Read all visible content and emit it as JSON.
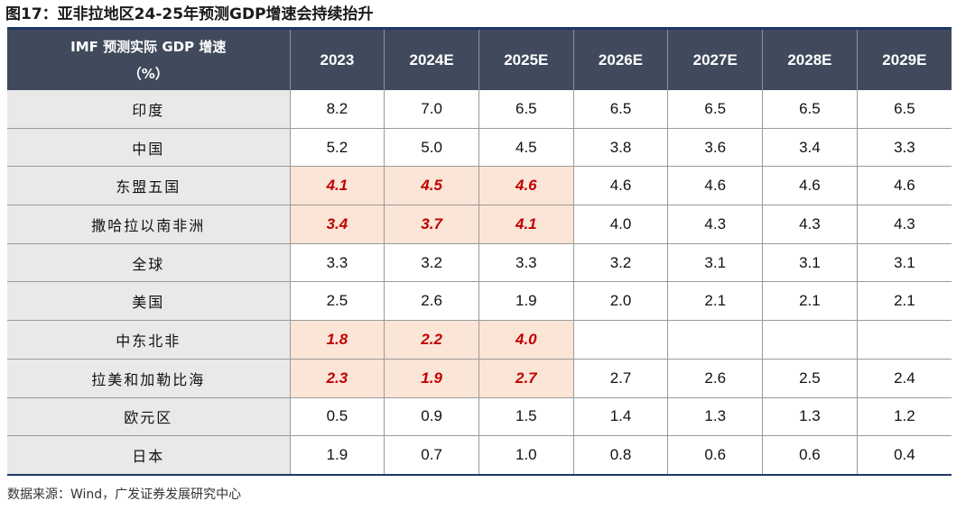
{
  "figure": {
    "title": "图17：亚非拉地区24-25年预测GDP增速会持续抬升",
    "source": "数据来源：Wind，广发证券发展研究中心"
  },
  "table": {
    "corner_line1": "IMF 预测实际 GDP 增速",
    "corner_line2": "（%）",
    "columns": [
      "2023",
      "2024E",
      "2025E",
      "2026E",
      "2027E",
      "2028E",
      "2029E"
    ],
    "rows": [
      {
        "region": "印度",
        "values": [
          "8.2",
          "7.0",
          "6.5",
          "6.5",
          "6.5",
          "6.5",
          "6.5"
        ],
        "highlight": [
          false,
          false,
          false,
          false,
          false,
          false,
          false
        ]
      },
      {
        "region": "中国",
        "values": [
          "5.2",
          "5.0",
          "4.5",
          "3.8",
          "3.6",
          "3.4",
          "3.3"
        ],
        "highlight": [
          false,
          false,
          false,
          false,
          false,
          false,
          false
        ]
      },
      {
        "region": "东盟五国",
        "values": [
          "4.1",
          "4.5",
          "4.6",
          "4.6",
          "4.6",
          "4.6",
          "4.6"
        ],
        "highlight": [
          true,
          true,
          true,
          false,
          false,
          false,
          false
        ]
      },
      {
        "region": "撒哈拉以南非洲",
        "values": [
          "3.4",
          "3.7",
          "4.1",
          "4.0",
          "4.3",
          "4.3",
          "4.3"
        ],
        "highlight": [
          true,
          true,
          true,
          false,
          false,
          false,
          false
        ]
      },
      {
        "region": "全球",
        "values": [
          "3.3",
          "3.2",
          "3.3",
          "3.2",
          "3.1",
          "3.1",
          "3.1"
        ],
        "highlight": [
          false,
          false,
          false,
          false,
          false,
          false,
          false
        ]
      },
      {
        "region": "美国",
        "values": [
          "2.5",
          "2.6",
          "1.9",
          "2.0",
          "2.1",
          "2.1",
          "2.1"
        ],
        "highlight": [
          false,
          false,
          false,
          false,
          false,
          false,
          false
        ]
      },
      {
        "region": "中东北非",
        "values": [
          "1.8",
          "2.2",
          "4.0",
          "",
          "",
          "",
          ""
        ],
        "highlight": [
          true,
          true,
          true,
          false,
          false,
          false,
          false
        ]
      },
      {
        "region": "拉美和加勒比海",
        "values": [
          "2.3",
          "1.9",
          "2.7",
          "2.7",
          "2.6",
          "2.5",
          "2.4"
        ],
        "highlight": [
          true,
          true,
          true,
          false,
          false,
          false,
          false
        ]
      },
      {
        "region": "欧元区",
        "values": [
          "0.5",
          "0.9",
          "1.5",
          "1.4",
          "1.3",
          "1.3",
          "1.2"
        ],
        "highlight": [
          false,
          false,
          false,
          false,
          false,
          false,
          false
        ]
      },
      {
        "region": "日本",
        "values": [
          "1.9",
          "0.7",
          "1.0",
          "0.8",
          "0.6",
          "0.6",
          "0.4"
        ],
        "highlight": [
          false,
          false,
          false,
          false,
          false,
          false,
          false
        ]
      }
    ]
  },
  "colors": {
    "header_bg": "#404a5c",
    "highlight_bg": "#fbe5d6",
    "highlight_text": "#c00000",
    "region_bg": "#e9e9e9"
  }
}
